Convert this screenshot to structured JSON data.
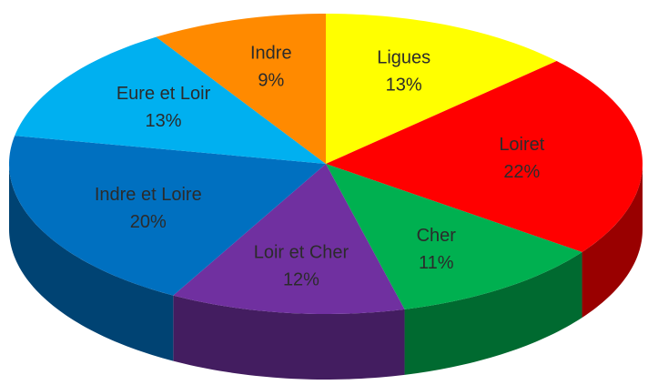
{
  "chart_data": {
    "type": "pie3d",
    "categories": [
      "Ligues",
      "Loiret",
      "Cher",
      "Loir et Cher",
      "Indre et Loire",
      "Eure et Loir",
      "Indre"
    ],
    "values": [
      13,
      22,
      11,
      12,
      20,
      13,
      9
    ],
    "value_labels": [
      "13%",
      "22%",
      "11%",
      "12%",
      "20%",
      "13%",
      "9%"
    ],
    "colors": [
      "#ffff00",
      "#ff0000",
      "#00b050",
      "#7030a0",
      "#0070c0",
      "#00b0f0",
      "#ff8a00"
    ]
  }
}
